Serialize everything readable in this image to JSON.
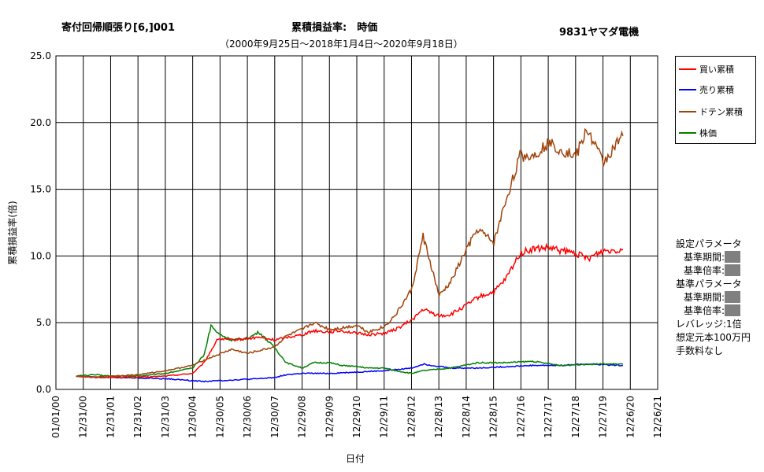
{
  "header": {
    "strategy": "寄付回帰順張り[6,]001",
    "metric": "累積損益率:　時価",
    "ticker": "9831ヤマダ電機",
    "period": "（2000年9月25日～2018年1月4日～2020年9月18日）"
  },
  "params": {
    "settings_title": "設定パラメータ",
    "period_label": "基準期間:",
    "ratio_label": "基準倍率:",
    "base_title": "基準パラメータ",
    "base_period_label": "基準期間:",
    "base_ratio_label": "基準倍率:",
    "leverage": "レバレッジ:1倍",
    "principal": "想定元本100万円",
    "fee": "手数料なし"
  },
  "chart_data": {
    "type": "line",
    "title": "累積損益率:　時価",
    "xlabel": "日付",
    "ylabel": "累積損益率(倍)",
    "ylim": [
      0,
      25
    ],
    "yticks": [
      "0.0",
      "5.0",
      "10.0",
      "15.0",
      "20.0",
      "25.0"
    ],
    "xlim": [
      "2000-01-01",
      "2021-12-26"
    ],
    "xticks": [
      "01/01/00",
      "12/31/00",
      "12/31/01",
      "12/31/02",
      "12/31/03",
      "12/30/04",
      "12/30/05",
      "12/30/06",
      "12/30/07",
      "12/29/08",
      "12/29/09",
      "12/29/10",
      "12/29/11",
      "12/28/12",
      "12/28/13",
      "12/28/14",
      "12/28/15",
      "12/27/16",
      "12/27/17",
      "12/27/18",
      "12/27/19",
      "12/26/20",
      "12/26/21"
    ],
    "grid": true,
    "legend_position": "right",
    "series": [
      {
        "name": "買い累積",
        "color": "#ff0000",
        "x": [
          "2000-09-25",
          "2001-06-01",
          "2002-01-01",
          "2003-01-01",
          "2004-01-01",
          "2004-12-30",
          "2005-06-01",
          "2005-12-01",
          "2006-06-01",
          "2007-01-01",
          "2007-06-01",
          "2008-01-01",
          "2008-06-01",
          "2009-01-01",
          "2009-06-01",
          "2010-01-01",
          "2010-06-01",
          "2011-01-01",
          "2011-06-01",
          "2012-01-01",
          "2012-06-01",
          "2013-01-01",
          "2013-06-01",
          "2014-01-01",
          "2014-06-01",
          "2015-01-01",
          "2015-06-01",
          "2016-01-01",
          "2016-06-01",
          "2016-12-15",
          "2017-06-01",
          "2018-01-01",
          "2018-06-01",
          "2019-01-01",
          "2019-06-01",
          "2020-01-01",
          "2020-09-18"
        ],
        "values": [
          1.0,
          0.9,
          0.9,
          0.9,
          1.0,
          1.2,
          2.0,
          3.8,
          3.7,
          3.8,
          3.9,
          3.7,
          3.9,
          4.1,
          4.4,
          4.3,
          4.4,
          4.2,
          4.1,
          4.2,
          4.5,
          5.2,
          6.0,
          5.5,
          5.6,
          6.3,
          6.9,
          7.3,
          8.2,
          10.2,
          10.5,
          10.6,
          10.4,
          10.2,
          9.8,
          10.4,
          10.5
        ]
      },
      {
        "name": "売り累積",
        "color": "#0000ff",
        "x": [
          "2000-09-25",
          "2002-01-01",
          "2004-01-01",
          "2005-06-01",
          "2006-06-01",
          "2007-06-01",
          "2008-01-01",
          "2008-06-01",
          "2009-01-01",
          "2010-01-01",
          "2011-01-01",
          "2012-01-01",
          "2013-01-01",
          "2013-06-01",
          "2014-06-01",
          "2015-06-01",
          "2016-06-01",
          "2017-06-01",
          "2018-06-01",
          "2019-06-01",
          "2020-09-18"
        ],
        "values": [
          1.0,
          0.9,
          0.8,
          0.6,
          0.7,
          0.8,
          0.9,
          1.1,
          1.2,
          1.2,
          1.3,
          1.4,
          1.6,
          1.9,
          1.6,
          1.6,
          1.7,
          1.8,
          1.8,
          1.9,
          1.8
        ]
      },
      {
        "name": "ドテン累積",
        "color": "#a0430a",
        "x": [
          "2000-09-25",
          "2001-06-01",
          "2002-01-01",
          "2003-01-01",
          "2004-01-01",
          "2004-12-30",
          "2005-06-01",
          "2005-12-01",
          "2006-06-01",
          "2007-01-01",
          "2007-06-01",
          "2008-01-01",
          "2008-06-01",
          "2009-01-01",
          "2009-06-01",
          "2010-01-01",
          "2010-06-01",
          "2011-01-01",
          "2011-06-01",
          "2012-01-01",
          "2012-06-01",
          "2013-01-01",
          "2013-06-01",
          "2014-01-01",
          "2014-06-01",
          "2015-01-01",
          "2015-06-01",
          "2016-01-01",
          "2016-06-01",
          "2016-12-15",
          "2017-06-01",
          "2018-01-01",
          "2018-06-01",
          "2019-01-01",
          "2019-06-01",
          "2020-01-01",
          "2020-09-18"
        ],
        "values": [
          1.0,
          0.9,
          1.0,
          1.1,
          1.4,
          1.8,
          2.2,
          2.6,
          3.0,
          2.7,
          2.9,
          3.2,
          4.0,
          4.5,
          5.0,
          4.5,
          4.6,
          4.8,
          4.3,
          4.7,
          5.6,
          7.5,
          11.5,
          7.0,
          8.0,
          10.5,
          12.0,
          11.0,
          14.0,
          17.5,
          17.5,
          18.5,
          18.0,
          17.5,
          19.5,
          17.0,
          19.0
        ]
      },
      {
        "name": "株価",
        "color": "#008000",
        "x": [
          "2000-09-25",
          "2001-06-01",
          "2002-01-01",
          "2003-01-01",
          "2004-01-01",
          "2004-12-30",
          "2005-06-01",
          "2005-09-01",
          "2005-12-01",
          "2006-06-01",
          "2007-01-01",
          "2007-06-01",
          "2008-01-01",
          "2008-06-01",
          "2009-01-01",
          "2009-06-01",
          "2010-01-01",
          "2010-06-01",
          "2011-01-01",
          "2011-06-01",
          "2012-01-01",
          "2012-06-01",
          "2013-01-01",
          "2013-06-01",
          "2014-06-01",
          "2015-06-01",
          "2016-06-01",
          "2017-06-01",
          "2018-06-01",
          "2019-06-01",
          "2020-09-18"
        ],
        "values": [
          1.0,
          1.1,
          1.0,
          1.0,
          1.2,
          1.6,
          2.6,
          4.8,
          4.2,
          3.7,
          3.8,
          4.3,
          3.1,
          2.0,
          1.6,
          2.0,
          2.0,
          1.8,
          1.7,
          1.6,
          1.6,
          1.4,
          1.2,
          1.4,
          1.6,
          2.0,
          2.0,
          2.1,
          1.8,
          1.9,
          1.9
        ]
      }
    ]
  }
}
